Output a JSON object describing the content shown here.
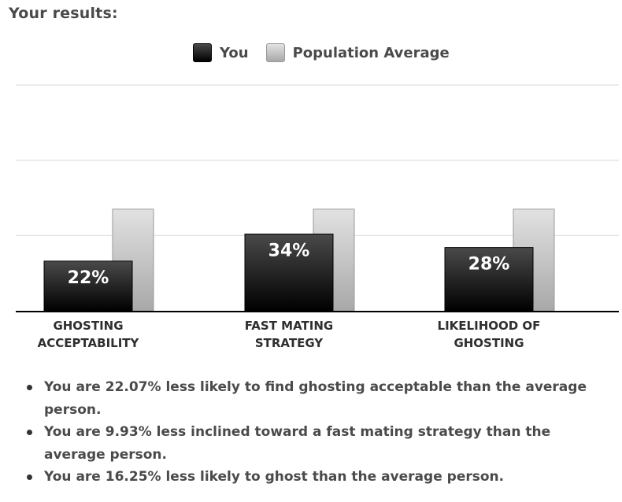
{
  "heading": "Your results:",
  "legend": {
    "you": "You",
    "average": "Population Average"
  },
  "colors": {
    "you_top": "#4a4a4a",
    "you_bottom": "#000000",
    "avg_top": "#e2e2e2",
    "avg_bottom": "#a8a8a8",
    "gridline": "#d9d9d9",
    "axis": "#000000"
  },
  "chart_data": {
    "type": "bar",
    "categories": [
      [
        "GHOSTING",
        "ACCEPTABILITY"
      ],
      [
        "FAST MATING",
        "STRATEGY"
      ],
      [
        "LIKELIHOOD OF",
        "GHOSTING"
      ]
    ],
    "series": [
      {
        "name": "You",
        "values": [
          22,
          34,
          28
        ],
        "labels": [
          "22%",
          "34%",
          "28%"
        ]
      },
      {
        "name": "Population Average",
        "values": [
          45,
          45,
          45
        ]
      }
    ],
    "ylim": [
      0,
      100
    ],
    "gridlines": [
      0,
      33.3,
      66.7,
      100
    ],
    "grid": true,
    "legend_position": "top-center"
  },
  "results": [
    "You are 22.07% less likely to find ghosting acceptable than the average person.",
    "You are 9.93% less inclined toward a fast mating strategy than the average person.",
    "You are 16.25% less likely to ghost than the average person."
  ]
}
